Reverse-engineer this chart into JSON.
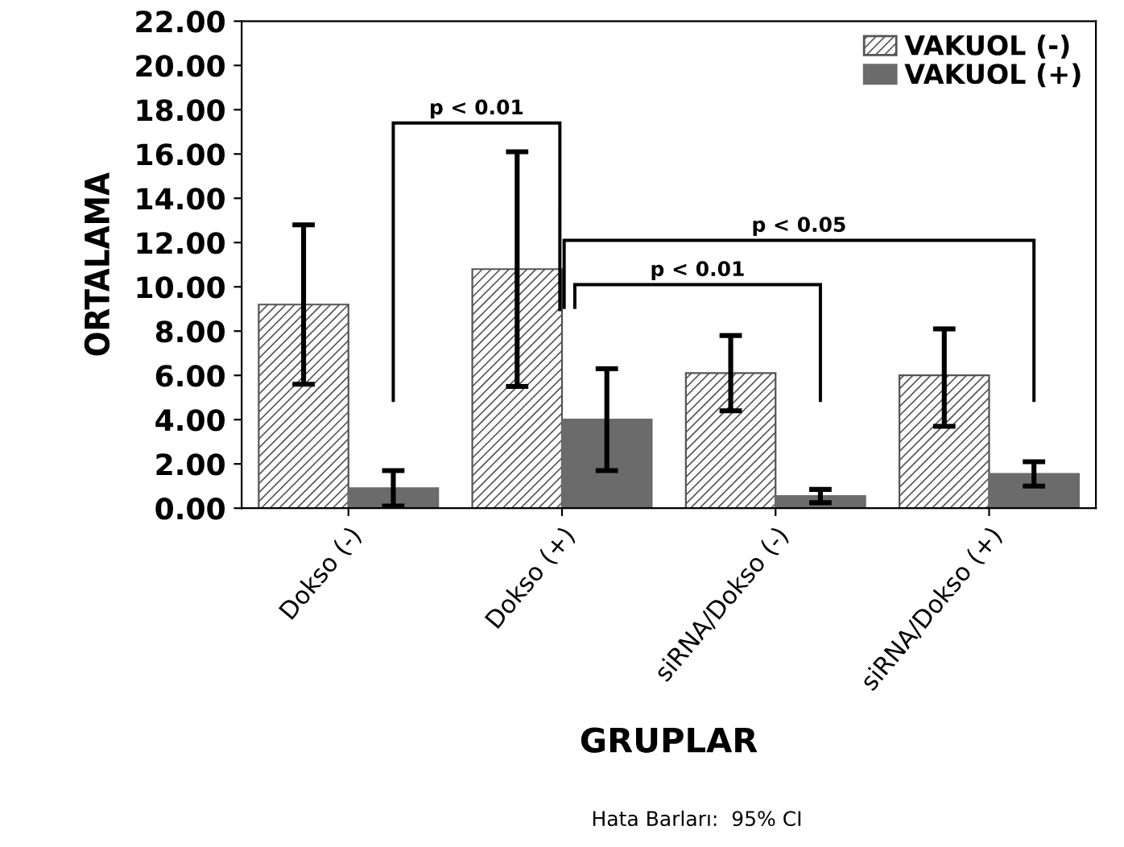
{
  "chart_data": {
    "type": "bar",
    "xlabel": "GRUPLAR",
    "ylabel": "ORTALAMA",
    "categories": [
      "Dokso (-)",
      "Dokso (+)",
      "siRNA/Dokso (-)",
      "siRNA/Dokso (+)"
    ],
    "series": [
      {
        "name": "VAKUOL (-)",
        "color": "#555555",
        "values": [
          9.2,
          10.8,
          6.1,
          6.0
        ],
        "errors": [
          [
            5.6,
            12.8
          ],
          [
            5.5,
            16.1
          ],
          [
            4.4,
            7.8
          ],
          [
            3.7,
            8.1
          ]
        ]
      },
      {
        "name": "VAKUOL (+)",
        "color": "#6b6b6b",
        "values": [
          0.9,
          4.0,
          0.55,
          1.55
        ],
        "errors": [
          [
            0.1,
            1.7
          ],
          [
            1.7,
            6.3
          ],
          [
            0.25,
            0.85
          ],
          [
            1.0,
            2.1
          ]
        ]
      }
    ],
    "ylim": [
      0,
      22
    ],
    "yticks": [
      {
        "value": 0,
        "label": "0.00"
      },
      {
        "value": 2,
        "label": "2.00"
      },
      {
        "value": 4,
        "label": "4.00"
      },
      {
        "value": 6,
        "label": "6.00"
      },
      {
        "value": 8,
        "label": "8.00"
      },
      {
        "value": 10,
        "label": "10.00"
      },
      {
        "value": 12,
        "label": "12.00"
      },
      {
        "value": 14,
        "label": "14.00"
      },
      {
        "value": 16,
        "label": "16.00"
      },
      {
        "value": 18,
        "label": "18.00"
      },
      {
        "value": 20,
        "label": "20.00"
      },
      {
        "value": 22,
        "label": "22.00"
      }
    ],
    "legend": "top right",
    "grid": false,
    "annotations": [
      "p < 0.01",
      "p < 0.05",
      "p < 0.01",
      "Hata Barları:  95% CI"
    ]
  }
}
